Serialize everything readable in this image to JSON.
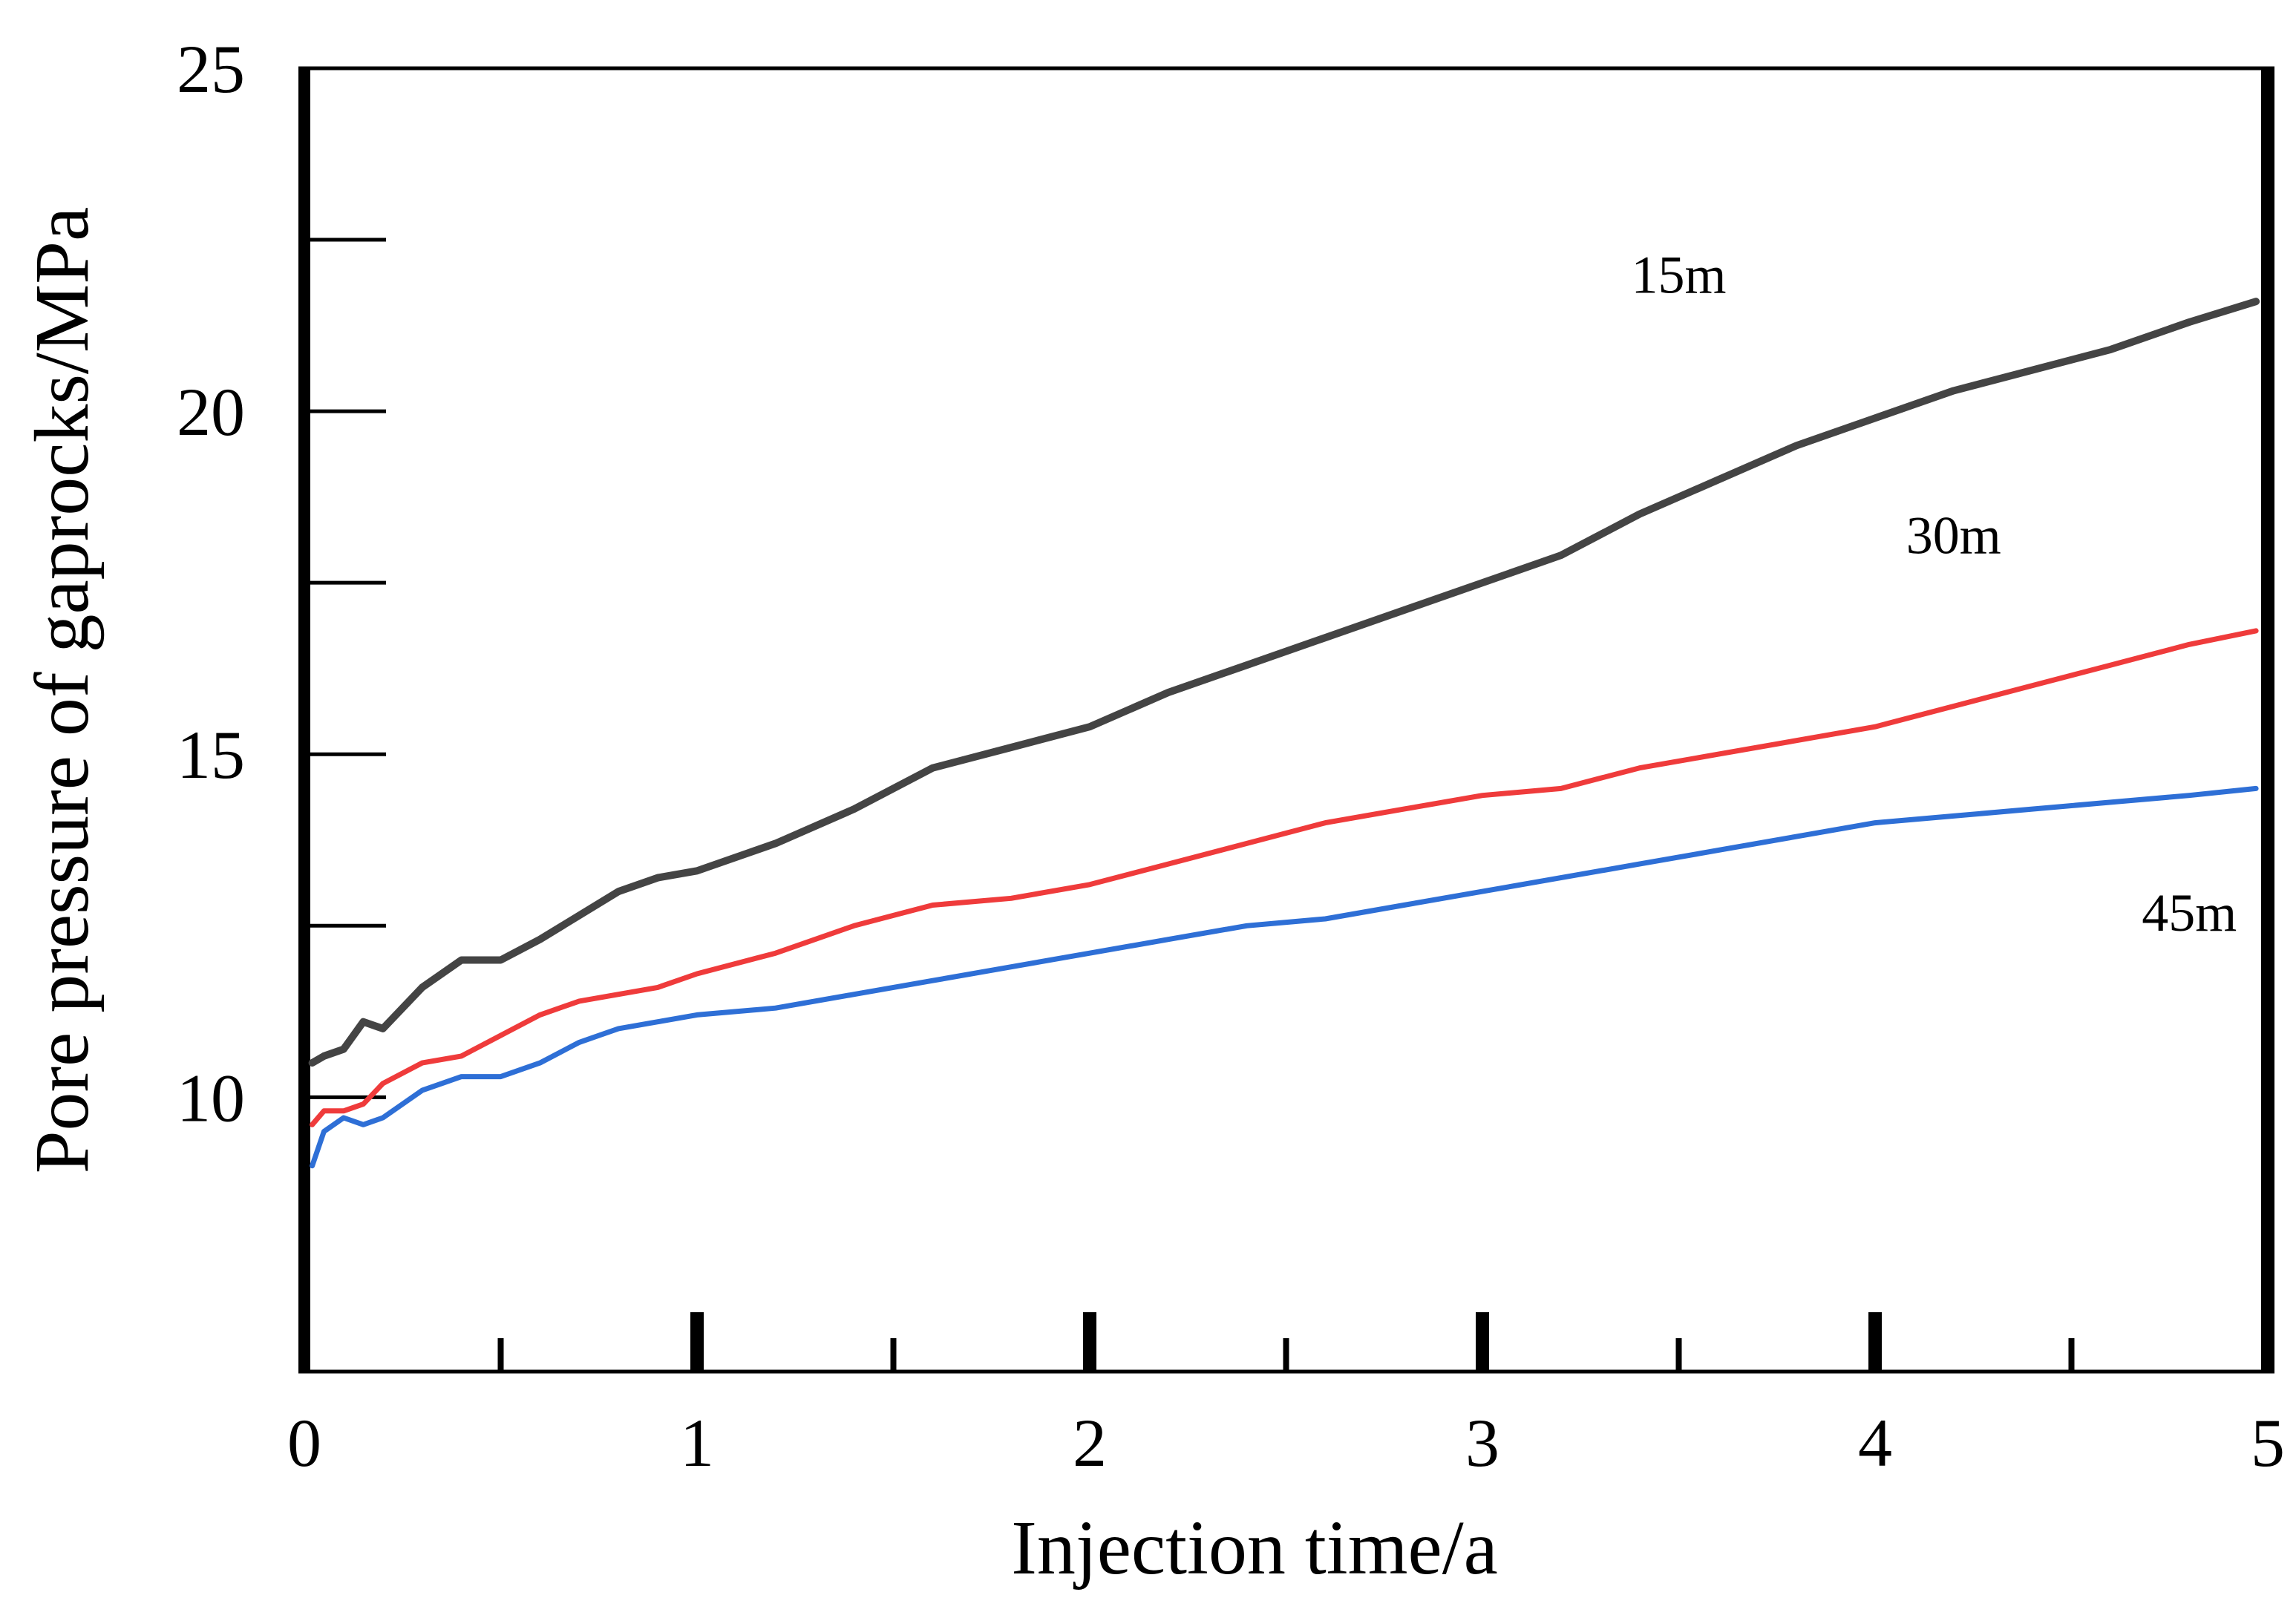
{
  "chart_data": {
    "type": "line",
    "title": "",
    "xlabel": "Injection time/a",
    "ylabel": "Pore pressure of gaprocks/MPa",
    "xlim": [
      0,
      5
    ],
    "ylim": [
      6,
      25
    ],
    "x_ticks": [
      0,
      1,
      2,
      3,
      4,
      5
    ],
    "x_tick_labels": [
      "0",
      "1",
      "2",
      "3",
      "4",
      "5"
    ],
    "y_ticks": [
      10,
      15,
      20,
      25
    ],
    "y_tick_labels": [
      "10",
      "15",
      "20",
      "25"
    ],
    "y_minor_ticks": [
      12.5,
      17.5,
      22.5
    ],
    "grid": false,
    "series": [
      {
        "name": "15m",
        "color": "#444444",
        "x": [
          0.02,
          0.05,
          0.1,
          0.15,
          0.2,
          0.3,
          0.4,
          0.5,
          0.6,
          0.8,
          0.9,
          1.0,
          1.2,
          1.4,
          1.6,
          1.8,
          2.0,
          2.2,
          2.4,
          2.6,
          2.8,
          3.0,
          3.2,
          3.4,
          3.6,
          3.8,
          4.0,
          4.2,
          4.4,
          4.6,
          4.8,
          4.97
        ],
        "values": [
          10.5,
          10.6,
          10.7,
          11.1,
          11.0,
          11.6,
          12.0,
          12.0,
          12.3,
          13.0,
          13.2,
          13.3,
          13.7,
          14.2,
          14.8,
          15.1,
          15.4,
          15.9,
          16.3,
          16.7,
          17.1,
          17.5,
          17.9,
          18.5,
          19.0,
          19.5,
          19.9,
          20.3,
          20.6,
          20.9,
          21.3,
          21.6
        ]
      },
      {
        "name": "30m",
        "color": "#ef3b3b",
        "x": [
          0.02,
          0.05,
          0.1,
          0.15,
          0.2,
          0.3,
          0.4,
          0.5,
          0.6,
          0.7,
          0.8,
          0.9,
          1.0,
          1.2,
          1.4,
          1.6,
          1.8,
          2.0,
          2.2,
          2.4,
          2.6,
          2.8,
          3.0,
          3.2,
          3.4,
          3.6,
          3.8,
          4.0,
          4.2,
          4.4,
          4.6,
          4.8,
          4.97
        ],
        "values": [
          9.6,
          9.8,
          9.8,
          9.9,
          10.2,
          10.5,
          10.6,
          10.9,
          11.2,
          11.4,
          11.5,
          11.6,
          11.8,
          12.1,
          12.5,
          12.8,
          12.9,
          13.1,
          13.4,
          13.7,
          14.0,
          14.2,
          14.4,
          14.5,
          14.8,
          15.0,
          15.2,
          15.4,
          15.7,
          16.0,
          16.3,
          16.6,
          16.8
        ]
      },
      {
        "name": "45m",
        "color": "#2e6fd6",
        "x": [
          0.02,
          0.05,
          0.1,
          0.15,
          0.2,
          0.3,
          0.4,
          0.5,
          0.6,
          0.7,
          0.8,
          0.9,
          1.0,
          1.2,
          1.4,
          1.6,
          1.8,
          2.0,
          2.2,
          2.4,
          2.6,
          2.8,
          3.0,
          3.2,
          3.4,
          3.6,
          3.8,
          4.0,
          4.2,
          4.4,
          4.6,
          4.8,
          4.97
        ],
        "values": [
          9.0,
          9.5,
          9.7,
          9.6,
          9.7,
          10.1,
          10.3,
          10.3,
          10.5,
          10.8,
          11.0,
          11.1,
          11.2,
          11.3,
          11.5,
          11.7,
          11.9,
          12.1,
          12.3,
          12.5,
          12.6,
          12.8,
          13.0,
          13.2,
          13.4,
          13.6,
          13.8,
          14.0,
          14.1,
          14.2,
          14.3,
          14.4,
          14.5
        ]
      }
    ],
    "annotations": [
      {
        "text": "15m",
        "x": 3.5,
        "y": 22.0
      },
      {
        "text": "30m",
        "x": 4.2,
        "y": 18.2
      },
      {
        "text": "45m",
        "x": 4.8,
        "y": 12.7
      }
    ]
  }
}
